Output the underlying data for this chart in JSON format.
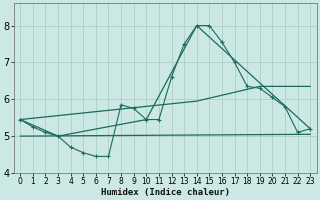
{
  "xlabel": "Humidex (Indice chaleur)",
  "bg_color": "#cce8e4",
  "grid_color": "#b0cec8",
  "line_color": "#1a6b5a",
  "xlim": [
    -0.5,
    23.5
  ],
  "ylim": [
    4.0,
    8.6
  ],
  "yticks": [
    4,
    5,
    6,
    7,
    8
  ],
  "xticks": [
    0,
    1,
    2,
    3,
    4,
    5,
    6,
    7,
    8,
    9,
    10,
    11,
    12,
    13,
    14,
    15,
    16,
    17,
    18,
    19,
    20,
    21,
    22,
    23
  ],
  "line1_x": [
    0,
    1,
    2,
    3,
    4,
    5,
    6,
    7,
    8,
    9,
    10,
    11,
    12,
    13,
    14,
    15,
    16,
    17,
    18,
    19,
    20,
    21,
    22,
    23
  ],
  "line1_y": [
    5.45,
    5.25,
    5.1,
    5.0,
    4.7,
    4.55,
    4.45,
    4.45,
    5.85,
    5.75,
    5.45,
    5.45,
    6.6,
    7.5,
    8.0,
    8.0,
    7.55,
    7.0,
    6.35,
    6.3,
    6.05,
    5.8,
    5.1,
    5.2
  ],
  "line2_x": [
    0,
    3,
    10,
    14,
    23
  ],
  "line2_y": [
    5.45,
    5.0,
    5.45,
    8.0,
    5.2
  ],
  "line3_x": [
    0,
    23
  ],
  "line3_y": [
    5.0,
    5.05
  ],
  "line4_x": [
    0,
    14,
    19,
    23
  ],
  "line4_y": [
    5.45,
    5.95,
    6.35,
    6.35
  ]
}
